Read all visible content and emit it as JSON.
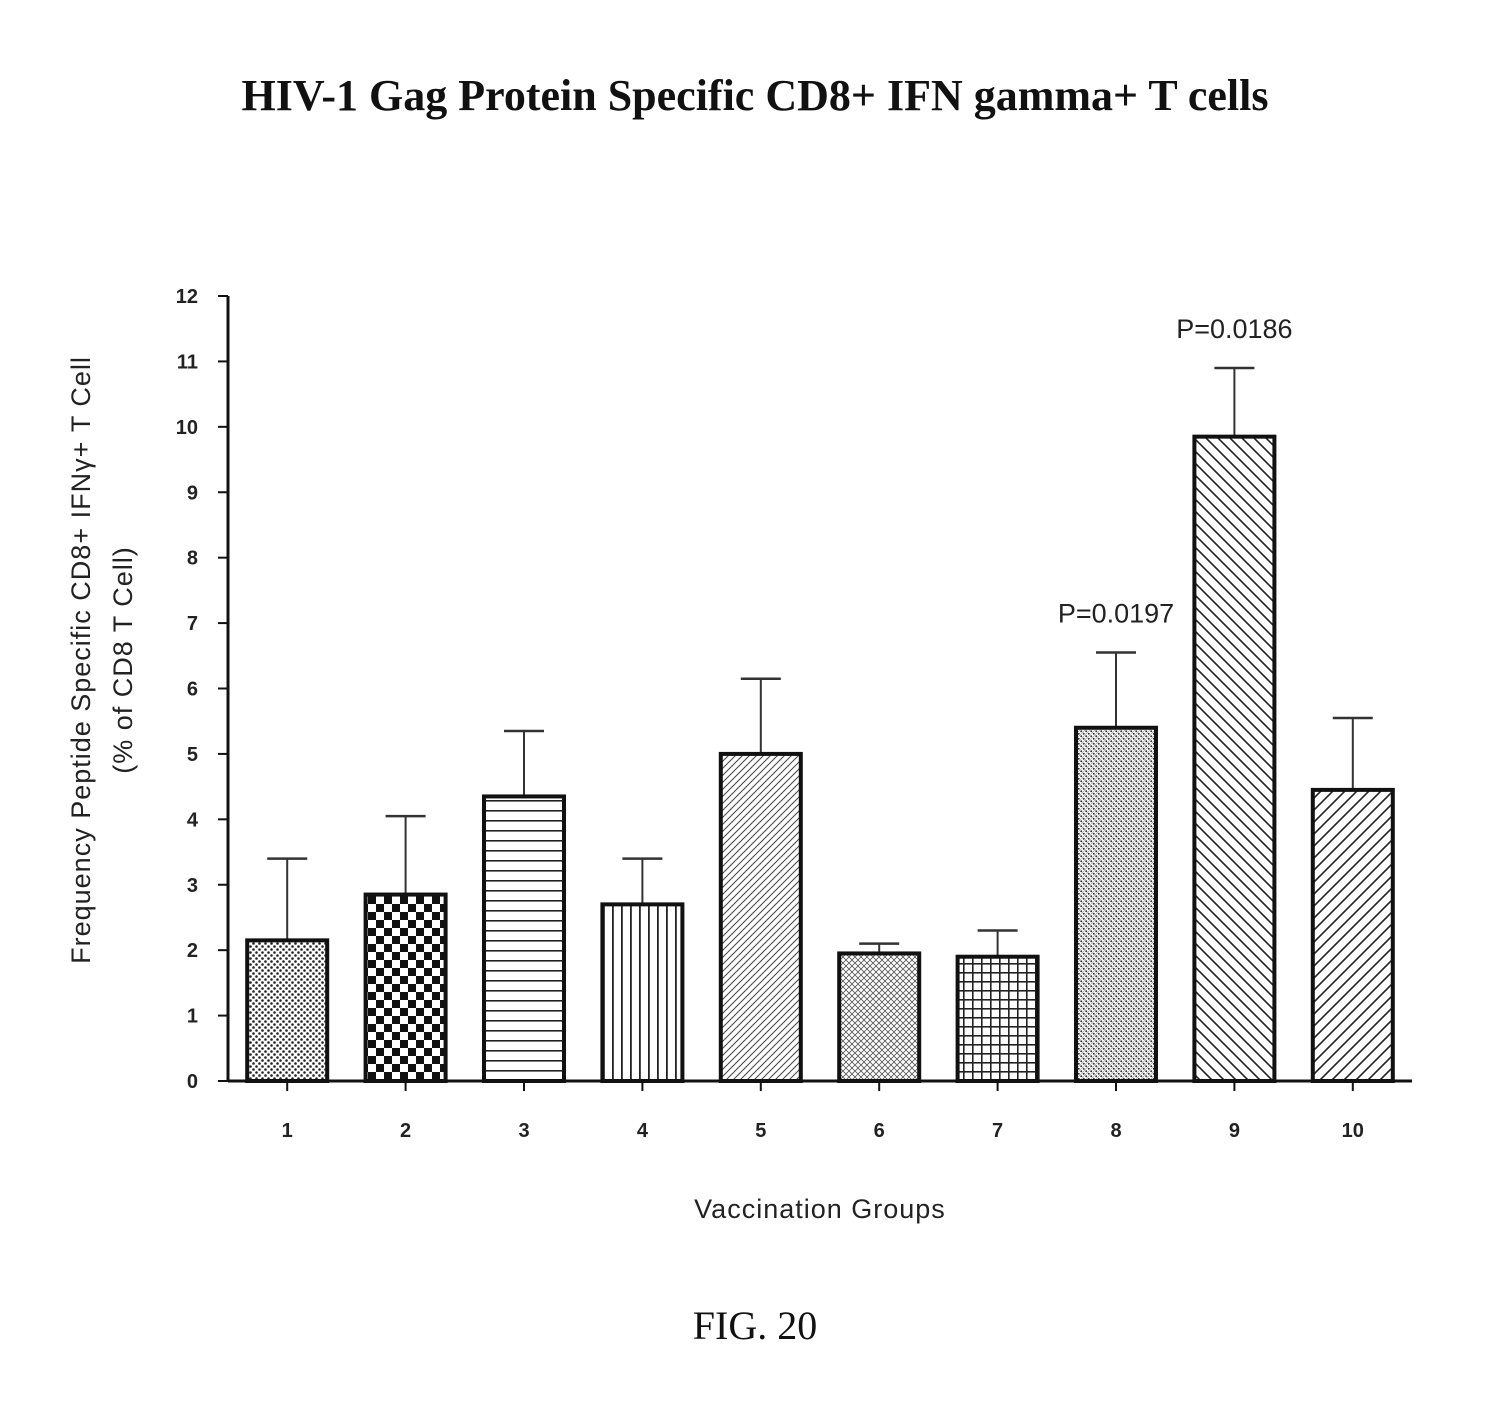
{
  "figure": {
    "caption": "FIG. 20"
  },
  "chart_data": {
    "type": "bar",
    "title": "HIV-1 Gag Protein Specific CD8+ IFN gamma+ T cells",
    "xlabel": "Vaccination Groups",
    "ylabel_line1": "Frequency Peptide Specific CD8+ IFNγ+ T Cell",
    "ylabel_line2": "(% of CD8 T Cell)",
    "ylim": [
      0,
      12
    ],
    "yticks": [
      0,
      1,
      2,
      3,
      4,
      5,
      6,
      7,
      8,
      9,
      10,
      11,
      12
    ],
    "grid": false,
    "categories": [
      "1",
      "2",
      "3",
      "4",
      "5",
      "6",
      "7",
      "8",
      "9",
      "10"
    ],
    "values": [
      2.15,
      2.85,
      4.35,
      2.7,
      5.0,
      1.95,
      1.9,
      5.4,
      9.85,
      4.45
    ],
    "error_upper": [
      3.4,
      4.05,
      5.35,
      3.4,
      6.15,
      2.1,
      2.3,
      6.55,
      10.9,
      5.55
    ],
    "annotations": [
      {
        "category": "8",
        "text": "P=0.0197"
      },
      {
        "category": "9",
        "text": "P=0.0186"
      }
    ],
    "patterns": [
      "fine-dots",
      "checker",
      "horizontal-lines",
      "vertical-lines",
      "diagonal-hatch-light",
      "cross-hatch-light",
      "grid",
      "dense-dots",
      "diagonal-back",
      "diagonal-forward"
    ],
    "colors": {
      "bar_stroke": "#111111",
      "pattern_ink": "#222222",
      "background": "#ffffff"
    }
  }
}
